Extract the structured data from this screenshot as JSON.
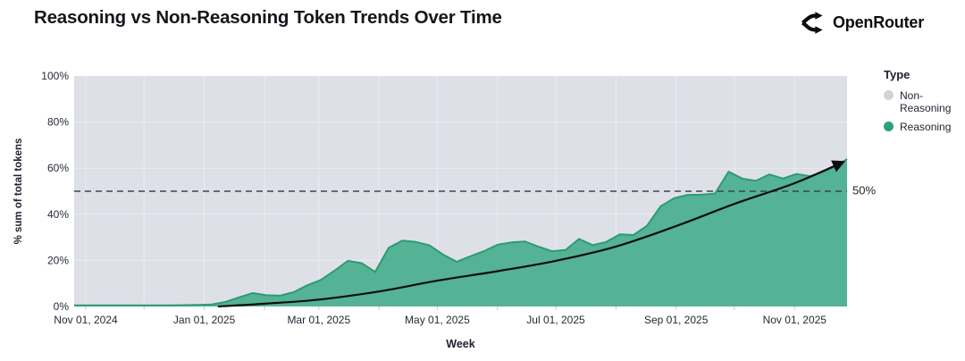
{
  "header": {
    "title": "Reasoning vs Non-Reasoning Token Trends Over Time",
    "brand": "OpenRouter"
  },
  "colors": {
    "plot_bg": "#dee0e8",
    "grid": "#f0f1f6",
    "area_fill": "#54b295",
    "area_stroke": "#2d9b72",
    "ref_line": "#3b4254",
    "trend_line": "#0c0d10",
    "tick_mark": "#c3c6cf",
    "legend_non_reasoning": "#d2d3d9",
    "legend_reasoning": "#2aa274",
    "text": "#252a36"
  },
  "chart_data": {
    "type": "area",
    "title": "Reasoning vs Non-Reasoning Token Trends Over Time",
    "xlabel": "Week",
    "ylabel": "% sum of total tokens",
    "ylim": [
      0,
      100
    ],
    "x_domain": [
      "2024-10-26",
      "2025-11-28"
    ],
    "grid": true,
    "y_ticks": [
      {
        "v": 0,
        "label": "0%"
      },
      {
        "v": 20,
        "label": "20%"
      },
      {
        "v": 40,
        "label": "40%"
      },
      {
        "v": 60,
        "label": "60%"
      },
      {
        "v": 80,
        "label": "80%"
      },
      {
        "v": 100,
        "label": "100%"
      }
    ],
    "x_ticks": [
      {
        "date": "2024-11-01",
        "label": "Nov 01, 2024"
      },
      {
        "date": "2025-01-01",
        "label": "Jan 01, 2025"
      },
      {
        "date": "2025-03-01",
        "label": "Mar 01, 2025"
      },
      {
        "date": "2025-05-01",
        "label": "May 01, 2025"
      },
      {
        "date": "2025-07-01",
        "label": "Jul 01, 2025"
      },
      {
        "date": "2025-09-01",
        "label": "Sep 01, 2025"
      },
      {
        "date": "2025-11-01",
        "label": "Nov 01, 2025"
      }
    ],
    "grid_dates": [
      "2024-11-01",
      "2024-12-01",
      "2025-01-01",
      "2025-02-01",
      "2025-03-01",
      "2025-04-01",
      "2025-05-01",
      "2025-06-01",
      "2025-07-01",
      "2025-08-01",
      "2025-09-01",
      "2025-10-01",
      "2025-11-01"
    ],
    "reference_line": {
      "value": 50,
      "label": "50%"
    },
    "legend": {
      "title": "Type",
      "position": "right",
      "items": [
        {
          "label": "Non-Reasoning",
          "color": "#d2d3d9"
        },
        {
          "label": "Reasoning",
          "color": "#2aa274"
        }
      ]
    },
    "series": [
      {
        "name": "Reasoning",
        "unit": "% of total tokens per week",
        "points": [
          [
            "2024-10-26",
            0.5
          ],
          [
            "2024-11-03",
            0.5
          ],
          [
            "2024-11-10",
            0.5
          ],
          [
            "2024-11-17",
            0.5
          ],
          [
            "2024-11-24",
            0.5
          ],
          [
            "2024-12-01",
            0.5
          ],
          [
            "2024-12-08",
            0.5
          ],
          [
            "2024-12-15",
            0.5
          ],
          [
            "2024-12-22",
            0.6
          ],
          [
            "2024-12-29",
            0.7
          ],
          [
            "2025-01-05",
            0.9
          ],
          [
            "2025-01-12",
            2.0
          ],
          [
            "2025-01-19",
            4.0
          ],
          [
            "2025-01-26",
            5.8
          ],
          [
            "2025-02-02",
            4.9
          ],
          [
            "2025-02-09",
            4.7
          ],
          [
            "2025-02-16",
            6.2
          ],
          [
            "2025-02-23",
            9.2
          ],
          [
            "2025-03-02",
            11.5
          ],
          [
            "2025-03-09",
            15.5
          ],
          [
            "2025-03-16",
            19.8
          ],
          [
            "2025-03-23",
            18.8
          ],
          [
            "2025-03-30",
            15.0
          ],
          [
            "2025-04-06",
            25.5
          ],
          [
            "2025-04-13",
            28.6
          ],
          [
            "2025-04-20",
            28.0
          ],
          [
            "2025-04-27",
            26.5
          ],
          [
            "2025-05-04",
            22.5
          ],
          [
            "2025-05-11",
            19.4
          ],
          [
            "2025-05-18",
            21.8
          ],
          [
            "2025-05-25",
            24.0
          ],
          [
            "2025-06-01",
            26.8
          ],
          [
            "2025-06-08",
            27.8
          ],
          [
            "2025-06-15",
            28.2
          ],
          [
            "2025-06-22",
            26.0
          ],
          [
            "2025-06-29",
            24.0
          ],
          [
            "2025-07-06",
            24.5
          ],
          [
            "2025-07-13",
            29.3
          ],
          [
            "2025-07-20",
            26.6
          ],
          [
            "2025-07-27",
            28.0
          ],
          [
            "2025-08-03",
            31.3
          ],
          [
            "2025-08-10",
            31.0
          ],
          [
            "2025-08-17",
            35.0
          ],
          [
            "2025-08-24",
            43.5
          ],
          [
            "2025-08-31",
            47.0
          ],
          [
            "2025-09-07",
            48.4
          ],
          [
            "2025-09-14",
            48.5
          ],
          [
            "2025-09-21",
            49.0
          ],
          [
            "2025-09-28",
            58.5
          ],
          [
            "2025-10-05",
            55.5
          ],
          [
            "2025-10-12",
            54.5
          ],
          [
            "2025-10-19",
            57.3
          ],
          [
            "2025-10-26",
            55.5
          ],
          [
            "2025-11-02",
            57.5
          ],
          [
            "2025-11-09",
            56.5
          ],
          [
            "2025-11-16",
            58.5
          ],
          [
            "2025-11-23",
            61.0
          ],
          [
            "2025-11-28",
            64.0
          ]
        ]
      },
      {
        "name": "Non-Reasoning",
        "note": "remainder of 100% stacked above Reasoning (gray region)"
      }
    ],
    "trend_line": {
      "style": "smooth curve with arrowhead",
      "points": [
        [
          "2025-01-08",
          0
        ],
        [
          "2025-02-01",
          1.2
        ],
        [
          "2025-03-01",
          3.0
        ],
        [
          "2025-04-01",
          6.5
        ],
        [
          "2025-05-01",
          11.2
        ],
        [
          "2025-06-01",
          15.3
        ],
        [
          "2025-07-01",
          19.8
        ],
        [
          "2025-08-01",
          26.0
        ],
        [
          "2025-09-01",
          34.9
        ],
        [
          "2025-10-01",
          44.5
        ],
        [
          "2025-11-01",
          53.5
        ],
        [
          "2025-11-25",
          62.3
        ]
      ]
    }
  }
}
